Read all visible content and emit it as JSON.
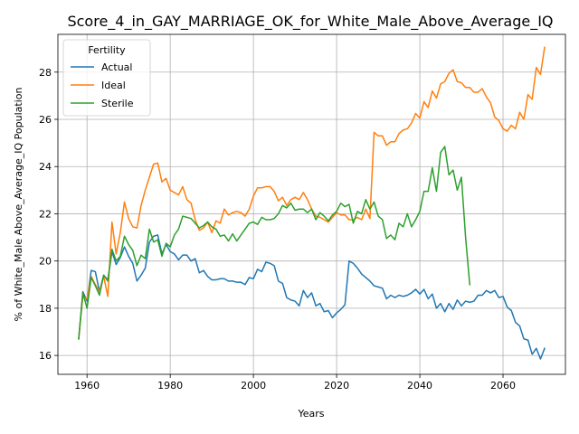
{
  "chart_data": {
    "type": "line",
    "title": "Score_4_in_GAY_MARRIAGE_OK_for_White_Male_Above_Average_IQ",
    "xlabel": "Years",
    "ylabel": "% of White_Male Above_Average_IQ Population",
    "xlim": [
      1953,
      2075
    ],
    "ylim": [
      15.2,
      29.6
    ],
    "xticks": [
      1960,
      1980,
      2000,
      2020,
      2040,
      2060
    ],
    "yticks": [
      16,
      18,
      20,
      22,
      24,
      26,
      28
    ],
    "grid": true,
    "legend": {
      "title": "Fertility",
      "position": "top-left"
    },
    "series": [
      {
        "name": "Actual",
        "color": "#1f77b4",
        "x": [
          1958,
          1959,
          1960,
          1961,
          1962,
          1963,
          1964,
          1965,
          1966,
          1967,
          1968,
          1969,
          1970,
          1971,
          1972,
          1973,
          1974,
          1975,
          1976,
          1977,
          1978,
          1979,
          1980,
          1981,
          1982,
          1983,
          1984,
          1985,
          1986,
          1987,
          1988,
          1989,
          1990,
          1991,
          1992,
          1993,
          1994,
          1995,
          1996,
          1997,
          1998,
          1999,
          2000,
          2001,
          2002,
          2003,
          2004,
          2005,
          2006,
          2007,
          2008,
          2009,
          2010,
          2011,
          2012,
          2013,
          2014,
          2015,
          2016,
          2017,
          2018,
          2019,
          2020,
          2021,
          2022,
          2023,
          2024,
          2025,
          2026,
          2027,
          2028,
          2029,
          2030,
          2031,
          2032,
          2033,
          2034,
          2035,
          2036,
          2037,
          2038,
          2039,
          2040,
          2041,
          2042,
          2043,
          2044,
          2045,
          2046,
          2047,
          2048,
          2049,
          2050,
          2051,
          2052,
          2053,
          2054,
          2055,
          2056,
          2057,
          2058,
          2059,
          2060,
          2061,
          2062,
          2063,
          2064,
          2065,
          2066,
          2067,
          2068,
          2069,
          2070
        ],
        "values": [
          16.7,
          18.7,
          18.3,
          19.6,
          19.55,
          18.7,
          19.4,
          19.2,
          20.4,
          19.85,
          20.15,
          20.6,
          20.2,
          19.9,
          19.15,
          19.4,
          19.7,
          20.8,
          21.05,
          21.1,
          20.3,
          20.7,
          20.4,
          20.3,
          20.05,
          20.25,
          20.25,
          20.0,
          20.1,
          19.5,
          19.6,
          19.35,
          19.2,
          19.2,
          19.25,
          19.25,
          19.15,
          19.15,
          19.1,
          19.1,
          19.0,
          19.3,
          19.25,
          19.65,
          19.55,
          19.95,
          19.9,
          19.8,
          19.15,
          19.05,
          18.45,
          18.35,
          18.3,
          18.1,
          18.75,
          18.45,
          18.65,
          18.1,
          18.2,
          17.85,
          17.9,
          17.6,
          17.8,
          17.95,
          18.15,
          20.0,
          19.9,
          19.7,
          19.45,
          19.3,
          19.15,
          18.95,
          18.9,
          18.85,
          18.4,
          18.55,
          18.45,
          18.55,
          18.5,
          18.55,
          18.65,
          18.8,
          18.6,
          18.8,
          18.4,
          18.6,
          18.0,
          18.2,
          17.85,
          18.2,
          17.95,
          18.35,
          18.1,
          18.3,
          18.25,
          18.3,
          18.55,
          18.55,
          18.75,
          18.65,
          18.75,
          18.45,
          18.5,
          18.05,
          17.9,
          17.4,
          17.25,
          16.7,
          16.65,
          16.05,
          16.3,
          15.85,
          16.3
        ]
      },
      {
        "name": "Ideal",
        "color": "#ff7f0e",
        "x": [
          1958,
          1959,
          1960,
          1961,
          1962,
          1963,
          1964,
          1965,
          1966,
          1967,
          1968,
          1969,
          1970,
          1971,
          1972,
          1973,
          1974,
          1975,
          1976,
          1977,
          1978,
          1979,
          1980,
          1981,
          1982,
          1983,
          1984,
          1985,
          1986,
          1987,
          1988,
          1989,
          1990,
          1991,
          1992,
          1993,
          1994,
          1995,
          1996,
          1997,
          1998,
          1999,
          2000,
          2001,
          2002,
          2003,
          2004,
          2005,
          2006,
          2007,
          2008,
          2009,
          2010,
          2011,
          2012,
          2013,
          2014,
          2015,
          2016,
          2017,
          2018,
          2019,
          2020,
          2021,
          2022,
          2023,
          2024,
          2025,
          2026,
          2027,
          2028,
          2029,
          2030,
          2031,
          2032,
          2033,
          2034,
          2035,
          2036,
          2037,
          2038,
          2039,
          2040,
          2041,
          2042,
          2043,
          2044,
          2045,
          2046,
          2047,
          2048,
          2049,
          2050,
          2051,
          2052,
          2053,
          2054,
          2055,
          2056,
          2057,
          2058,
          2059,
          2060,
          2061,
          2062,
          2063,
          2064,
          2065,
          2066,
          2067,
          2068,
          2069,
          2070
        ],
        "values": [
          16.7,
          18.5,
          18.4,
          19.35,
          19.0,
          18.7,
          19.35,
          18.5,
          21.65,
          20.3,
          21.2,
          22.5,
          21.8,
          21.45,
          21.4,
          22.35,
          23.0,
          23.55,
          24.1,
          24.15,
          23.35,
          23.5,
          23.0,
          22.9,
          22.8,
          23.15,
          22.6,
          22.45,
          21.75,
          21.3,
          21.4,
          21.65,
          21.2,
          21.7,
          21.6,
          22.2,
          21.95,
          22.05,
          22.1,
          22.05,
          21.9,
          22.2,
          22.75,
          23.1,
          23.1,
          23.15,
          23.15,
          22.95,
          22.55,
          22.7,
          22.35,
          22.6,
          22.7,
          22.6,
          22.9,
          22.6,
          22.2,
          21.9,
          21.85,
          21.75,
          21.65,
          21.85,
          22.05,
          21.95,
          21.95,
          21.75,
          21.75,
          21.85,
          21.75,
          22.2,
          21.8,
          25.45,
          25.3,
          25.3,
          24.9,
          25.05,
          25.05,
          25.4,
          25.55,
          25.6,
          25.85,
          26.25,
          26.05,
          26.75,
          26.5,
          27.2,
          26.9,
          27.5,
          27.6,
          27.95,
          28.1,
          27.6,
          27.55,
          27.35,
          27.35,
          27.15,
          27.15,
          27.3,
          26.95,
          26.7,
          26.1,
          25.95,
          25.6,
          25.5,
          25.75,
          25.6,
          26.3,
          26.0,
          27.05,
          26.85,
          28.2,
          27.9,
          29.05
        ]
      },
      {
        "name": "Sterile",
        "color": "#2ca02c",
        "x": [
          1958,
          1959,
          1960,
          1961,
          1962,
          1963,
          1964,
          1965,
          1966,
          1967,
          1968,
          1969,
          1970,
          1971,
          1972,
          1973,
          1974,
          1975,
          1976,
          1977,
          1978,
          1979,
          1980,
          1981,
          1982,
          1983,
          1984,
          1985,
          1986,
          1987,
          1988,
          1989,
          1990,
          1991,
          1992,
          1993,
          1994,
          1995,
          1996,
          1997,
          1998,
          1999,
          2000,
          2001,
          2002,
          2003,
          2004,
          2005,
          2006,
          2007,
          2008,
          2009,
          2010,
          2011,
          2012,
          2013,
          2014,
          2015,
          2016,
          2017,
          2018,
          2019,
          2020,
          2021,
          2022,
          2023,
          2024,
          2025,
          2026,
          2027,
          2028,
          2029,
          2030,
          2031,
          2032,
          2033,
          2034,
          2035,
          2036,
          2037,
          2038,
          2039,
          2040,
          2041,
          2042,
          2043,
          2044,
          2045,
          2046,
          2047,
          2048,
          2049,
          2050,
          2051,
          2052
        ],
        "values": [
          16.7,
          18.65,
          18.0,
          19.3,
          18.95,
          18.55,
          19.4,
          19.15,
          20.5,
          20.0,
          20.2,
          21.05,
          20.7,
          20.45,
          19.8,
          20.25,
          20.1,
          21.35,
          20.8,
          20.9,
          20.2,
          20.75,
          20.6,
          21.1,
          21.35,
          21.9,
          21.85,
          21.8,
          21.6,
          21.4,
          21.5,
          21.65,
          21.45,
          21.35,
          21.05,
          21.1,
          20.85,
          21.15,
          20.85,
          21.1,
          21.35,
          21.6,
          21.65,
          21.55,
          21.85,
          21.75,
          21.75,
          21.8,
          22.0,
          22.35,
          22.25,
          22.45,
          22.15,
          22.2,
          22.2,
          22.05,
          22.2,
          21.75,
          22.05,
          21.9,
          21.7,
          21.95,
          22.1,
          22.45,
          22.3,
          22.4,
          21.6,
          22.1,
          22.0,
          22.6,
          22.2,
          22.5,
          21.9,
          21.75,
          20.95,
          21.1,
          20.9,
          21.6,
          21.45,
          22.0,
          21.45,
          21.75,
          22.1,
          22.95,
          22.95,
          23.95,
          22.95,
          24.6,
          24.85,
          23.65,
          23.85,
          23.0,
          23.55,
          21.0,
          19.0
        ]
      }
    ]
  }
}
